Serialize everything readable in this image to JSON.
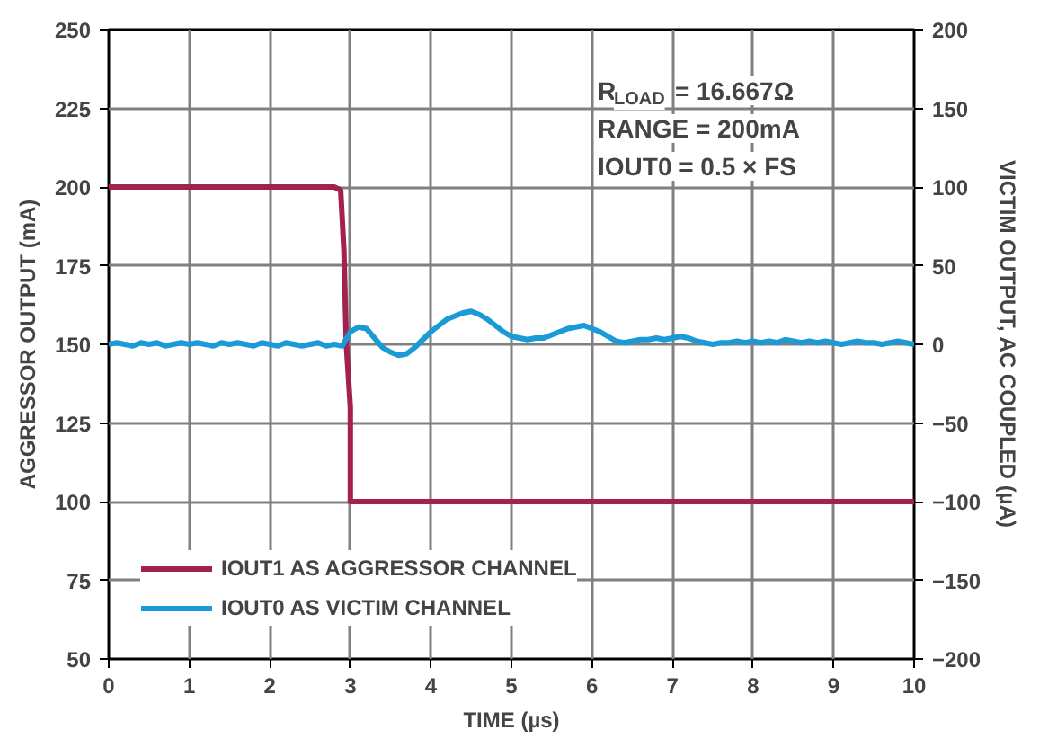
{
  "chart_data": {
    "type": "line",
    "xlabel": "TIME (µs)",
    "ylabel": "AGGRESSOR OUTPUT (mA)",
    "y2label": "VICTIM OUTPUT, AC COUPLED (µA)",
    "xlim": [
      0,
      10
    ],
    "xticks": [
      0,
      1,
      2,
      3,
      4,
      5,
      6,
      7,
      8,
      9,
      10
    ],
    "ylim": [
      50,
      250
    ],
    "yticks": [
      50,
      75,
      100,
      125,
      150,
      175,
      200,
      225,
      250
    ],
    "y2lim": [
      -200,
      200
    ],
    "y2ticks": [
      -200,
      -150,
      -100,
      -50,
      0,
      50,
      100,
      150,
      200
    ],
    "grid": true,
    "legend": "bottom left",
    "marker": "none",
    "line_style": "solid",
    "annotations": [
      "R$_{LOAD}$ = 16.667Ω",
      "RANGE = 200mA",
      "IOUT0 = 0.5 × FS"
    ],
    "series": [
      {
        "name": "IOUT1 AS AGGRESSOR CHANNEL",
        "color": "#a3214f",
        "x": [
          0,
          2.8,
          2.88,
          2.92,
          2.95,
          3.0,
          3.0,
          10
        ],
        "values": [
          200,
          200,
          199,
          180,
          150,
          130,
          100,
          100
        ]
      },
      {
        "name": "IOUT0 AS VICTIM CHANNEL",
        "color": "#1a9bd7",
        "axis": "y2",
        "x": [
          0,
          0.1,
          0.2,
          0.3,
          0.4,
          0.5,
          0.6,
          0.7,
          0.8,
          0.9,
          1.0,
          1.1,
          1.2,
          1.3,
          1.4,
          1.5,
          1.6,
          1.7,
          1.8,
          1.9,
          2.0,
          2.1,
          2.2,
          2.3,
          2.4,
          2.5,
          2.6,
          2.7,
          2.8,
          2.9,
          3.0,
          3.1,
          3.2,
          3.3,
          3.4,
          3.5,
          3.6,
          3.7,
          3.8,
          3.9,
          4.0,
          4.1,
          4.2,
          4.3,
          4.4,
          4.5,
          4.6,
          4.7,
          4.8,
          4.9,
          5.0,
          5.1,
          5.2,
          5.3,
          5.4,
          5.5,
          5.6,
          5.7,
          5.8,
          5.9,
          6.0,
          6.1,
          6.2,
          6.3,
          6.4,
          6.5,
          6.6,
          6.7,
          6.8,
          6.9,
          7.0,
          7.1,
          7.2,
          7.3,
          7.4,
          7.5,
          7.6,
          7.7,
          7.8,
          7.9,
          8.0,
          8.1,
          8.2,
          8.3,
          8.4,
          8.5,
          8.6,
          8.7,
          8.8,
          8.9,
          9.0,
          9.1,
          9.2,
          9.3,
          9.4,
          9.5,
          9.6,
          9.7,
          9.8,
          9.9,
          10.0
        ],
        "values": [
          0,
          1,
          0,
          -1,
          1,
          0,
          1,
          -1,
          0,
          1,
          0,
          1,
          0,
          -1,
          1,
          0,
          1,
          0,
          -1,
          1,
          0,
          -1,
          1,
          0,
          -1,
          0,
          1,
          -1,
          0,
          -1,
          8,
          11,
          10,
          4,
          -2,
          -5,
          -7,
          -6,
          -2,
          3,
          8,
          12,
          16,
          18,
          20,
          21,
          19,
          16,
          12,
          8,
          5,
          4,
          3,
          4,
          4,
          6,
          8,
          10,
          11,
          12,
          10,
          8,
          5,
          2,
          1,
          2,
          3,
          3,
          4,
          3,
          4,
          5,
          4,
          2,
          1,
          0,
          1,
          1,
          2,
          1,
          2,
          1,
          2,
          1,
          3,
          2,
          1,
          2,
          1,
          2,
          1,
          0,
          1,
          2,
          1,
          1,
          0,
          1,
          2,
          1,
          0
        ]
      }
    ]
  }
}
